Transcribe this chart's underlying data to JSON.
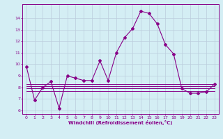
{
  "xlabel": "Windchill (Refroidissement éolien,°C)",
  "x": [
    0,
    1,
    2,
    3,
    4,
    5,
    6,
    7,
    8,
    9,
    10,
    11,
    12,
    13,
    14,
    15,
    16,
    17,
    18,
    19,
    20,
    21,
    22,
    23
  ],
  "main_line": [
    9.8,
    6.9,
    8.0,
    8.5,
    6.2,
    9.0,
    8.8,
    8.6,
    8.6,
    10.3,
    8.6,
    11.0,
    12.3,
    13.1,
    14.6,
    14.4,
    13.5,
    11.7,
    10.9,
    7.9,
    7.5,
    7.5,
    7.6,
    8.3
  ],
  "flat_lines": [
    [
      8.3,
      8.3,
      8.3,
      8.3,
      8.3,
      8.3,
      8.3,
      8.3,
      8.3,
      8.3,
      8.3,
      8.3,
      8.3,
      8.3,
      8.3,
      8.3,
      8.3,
      8.3,
      8.3,
      8.3,
      8.3,
      8.3,
      8.3,
      8.3
    ],
    [
      8.1,
      8.1,
      8.1,
      8.1,
      8.1,
      8.1,
      8.1,
      8.1,
      8.1,
      8.1,
      8.1,
      8.1,
      8.1,
      8.1,
      8.1,
      8.1,
      8.1,
      8.1,
      8.1,
      8.1,
      8.1,
      8.1,
      8.1,
      8.1
    ],
    [
      7.9,
      7.9,
      7.9,
      7.9,
      7.9,
      7.9,
      7.9,
      7.9,
      7.9,
      7.9,
      7.9,
      7.9,
      7.9,
      7.9,
      7.9,
      7.9,
      7.9,
      7.9,
      7.9,
      7.9,
      7.9,
      7.9,
      7.9,
      7.9
    ],
    [
      7.7,
      7.7,
      7.7,
      7.7,
      7.7,
      7.7,
      7.7,
      7.7,
      7.7,
      7.7,
      7.7,
      7.7,
      7.7,
      7.7,
      7.7,
      7.7,
      7.7,
      7.7,
      7.7,
      7.7,
      7.7,
      7.7,
      7.7,
      7.7
    ]
  ],
  "line_color": "#880088",
  "bg_color": "#d4eef4",
  "grid_color": "#bbccdd",
  "ylim": [
    5.7,
    15.2
  ],
  "xlim": [
    -0.5,
    23.5
  ],
  "yticks": [
    6,
    7,
    8,
    9,
    10,
    11,
    12,
    13,
    14
  ],
  "xticks": [
    0,
    1,
    2,
    3,
    4,
    5,
    6,
    7,
    8,
    9,
    10,
    11,
    12,
    13,
    14,
    15,
    16,
    17,
    18,
    19,
    20,
    21,
    22,
    23
  ]
}
